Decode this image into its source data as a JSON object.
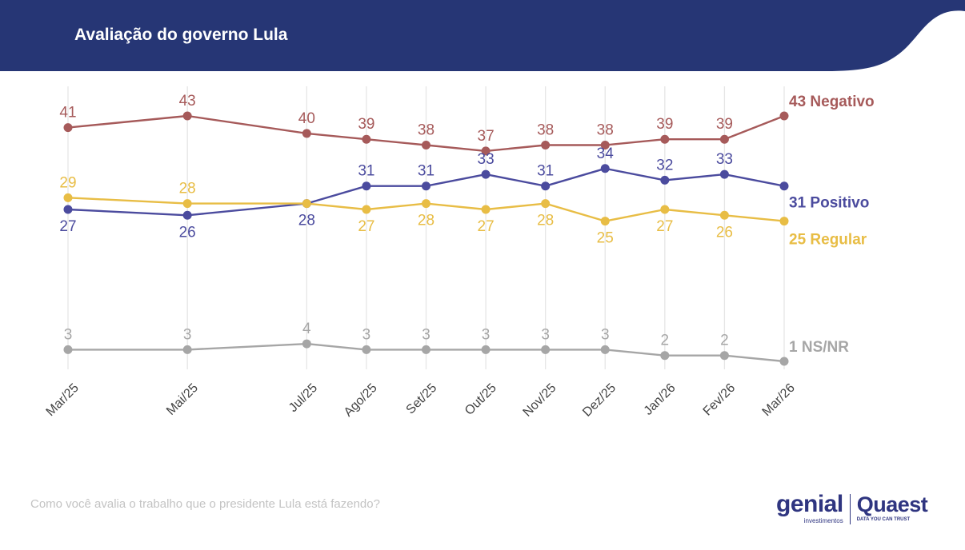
{
  "header": {
    "title": "Avaliação do governo Lula"
  },
  "footnote": "Como você avalia o trabalho que o presidente Lula está fazendo?",
  "logos": {
    "genial": "genial",
    "genial_sub": "investimentos",
    "quaest": "Quaest",
    "quaest_sub": "DATA YOU CAN TRUST"
  },
  "colors": {
    "header_bg": "#263675",
    "negativo": "#a65a5a",
    "positivo": "#4b4b9e",
    "regular": "#e8bd45",
    "nsnr": "#a6a6a6",
    "grid": "#e6e6e6"
  },
  "chart_data": {
    "type": "line",
    "categories": [
      "Mar/25",
      "Mai/25",
      "Jul/25",
      "Ago/25",
      "Set/25",
      "Out/25",
      "Nov/25",
      "Dez/25",
      "Jan/26",
      "Fev/26",
      "Mar/26"
    ],
    "x_offsets": [
      0,
      2,
      4,
      5,
      6,
      7,
      8,
      9,
      10,
      11,
      12
    ],
    "ylim": [
      0,
      45
    ],
    "grid": "vertical",
    "series": [
      {
        "key": "negativo",
        "name": "Negativo",
        "end_label": "43 Negativo",
        "values": [
          41,
          43,
          40,
          39,
          38,
          37,
          38,
          38,
          39,
          39,
          43
        ],
        "label_pos": [
          "above",
          "above",
          "above",
          "above",
          "above",
          "above",
          "above",
          "above",
          "above",
          "above",
          "none"
        ]
      },
      {
        "key": "positivo",
        "name": "Positivo",
        "end_label": "31 Positivo",
        "values": [
          27,
          26,
          28,
          31,
          31,
          33,
          31,
          34,
          32,
          33,
          31
        ],
        "label_pos": [
          "below",
          "below",
          "below",
          "above",
          "above",
          "above",
          "above",
          "above",
          "above",
          "above",
          "none"
        ]
      },
      {
        "key": "regular",
        "name": "Regular",
        "end_label": "25 Regular",
        "values": [
          29,
          28,
          28,
          27,
          28,
          27,
          28,
          25,
          27,
          26,
          25
        ],
        "label_pos": [
          "above",
          "above",
          "none",
          "below",
          "below",
          "below",
          "below",
          "below",
          "below",
          "below",
          "none"
        ]
      },
      {
        "key": "nsnr",
        "name": "NS/NR",
        "end_label": "1 NS/NR",
        "values": [
          3,
          3,
          4,
          3,
          3,
          3,
          3,
          3,
          2,
          2,
          1
        ],
        "label_pos": [
          "above",
          "above",
          "above",
          "above",
          "above",
          "above",
          "above",
          "above",
          "above",
          "above",
          "none"
        ]
      }
    ]
  }
}
